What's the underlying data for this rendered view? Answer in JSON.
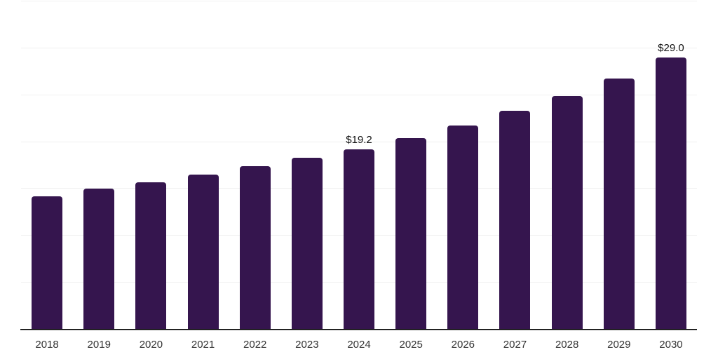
{
  "chart_data": {
    "type": "bar",
    "title": "",
    "xlabel": "",
    "ylabel": "",
    "categories": [
      "2018",
      "2019",
      "2020",
      "2021",
      "2022",
      "2023",
      "2024",
      "2025",
      "2026",
      "2027",
      "2028",
      "2029",
      "2030"
    ],
    "values": [
      14.2,
      15.0,
      15.7,
      16.5,
      17.4,
      18.3,
      19.2,
      20.4,
      21.8,
      23.3,
      24.9,
      26.8,
      29.0
    ],
    "data_labels": {
      "2024": "$19.2",
      "2030": "$29.0"
    },
    "ylim": [
      0,
      35
    ],
    "gridline_step": 5,
    "grid": "horizontal-only",
    "y_tick_labels_visible": false,
    "legend": "none",
    "colors": {
      "bar": "#35154E",
      "gridline": "#F0F0F0",
      "axis_line": "#222222",
      "tick_label": "#333333",
      "data_label": "#111111",
      "background": "#FFFFFF"
    }
  }
}
